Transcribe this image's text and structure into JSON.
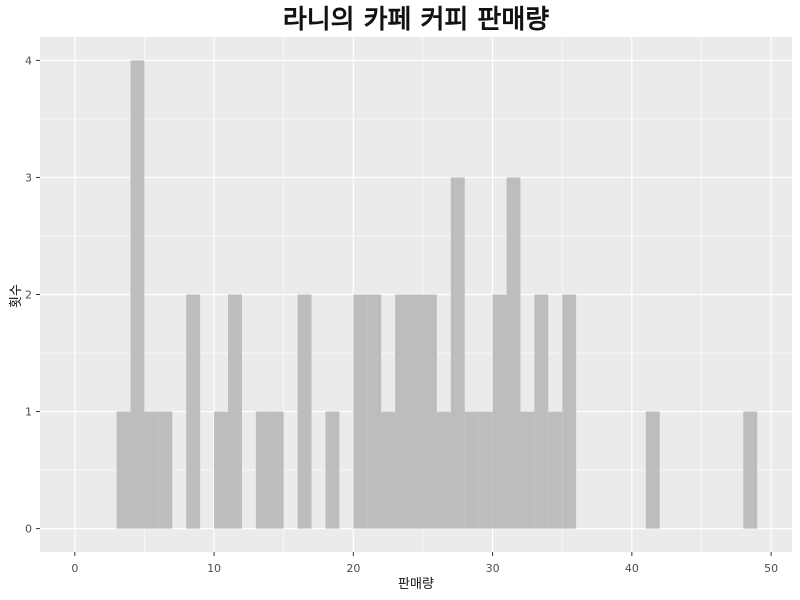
{
  "chart_data": {
    "type": "bar",
    "title": "라니의 카페 커피 판매량",
    "xlabel": "판매량",
    "ylabel": "횟수",
    "xlim": [
      -2.5,
      51.5
    ],
    "ylim": [
      -0.2,
      4.2
    ],
    "x_ticks": [
      0,
      10,
      20,
      30,
      40,
      50
    ],
    "y_ticks": [
      0,
      1,
      2,
      3,
      4
    ],
    "grid": true,
    "bin_width": 1,
    "bin_starts": [
      3,
      4,
      5,
      6,
      8,
      10,
      11,
      13,
      14,
      16,
      18,
      20,
      21,
      22,
      23,
      24,
      25,
      26,
      27,
      28,
      29,
      30,
      31,
      32,
      33,
      34,
      35,
      41,
      48
    ],
    "values": [
      1,
      4,
      1,
      1,
      2,
      1,
      2,
      1,
      1,
      2,
      1,
      2,
      2,
      1,
      2,
      2,
      2,
      1,
      3,
      1,
      1,
      2,
      3,
      1,
      2,
      1,
      2,
      1,
      1
    ],
    "bar_color": "#bdbdbd",
    "panel_color": "#ebebeb",
    "grid_color": "#ffffff"
  }
}
